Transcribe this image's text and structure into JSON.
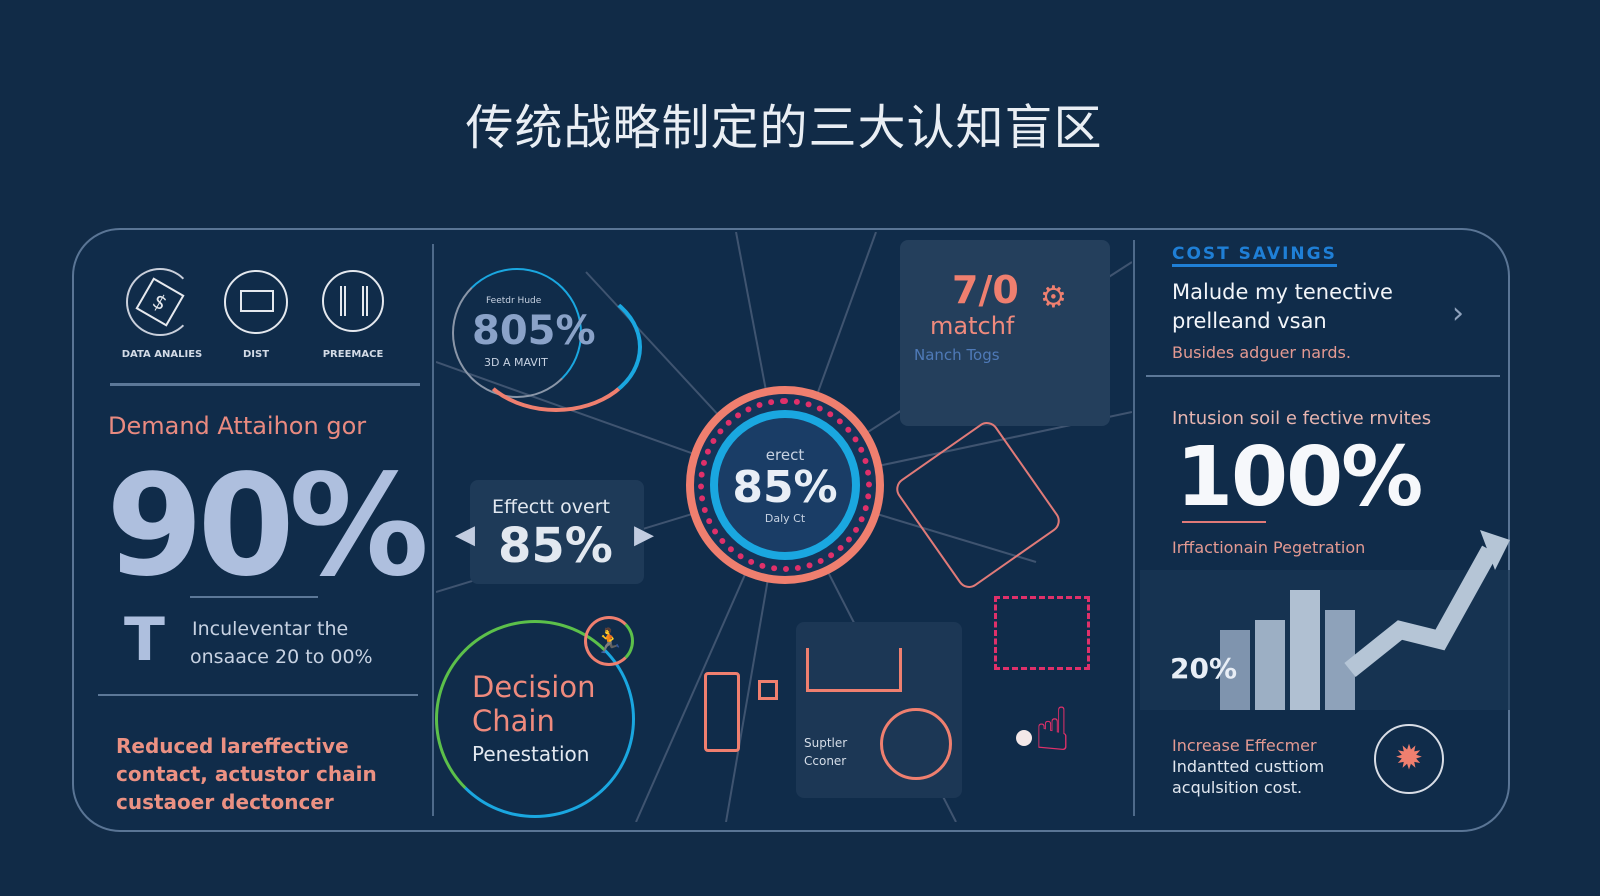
{
  "title": "传统战略制定的三大认知盲区",
  "left": {
    "icons": [
      {
        "icon": "dollar-cycle-icon",
        "label": "DATA ANALIES"
      },
      {
        "icon": "presentation-board-icon",
        "label": "DIST"
      },
      {
        "icon": "bar-chart-icon",
        "label": "PREEMACE"
      }
    ],
    "heading": "Demand Attaihon gor",
    "big_value": "90%",
    "note_line1": "Inculeventar the",
    "note_line2": "onsaace 20 to 00%",
    "footer": "Reduced lareffective contact, actustor chain custaoer dectoncer"
  },
  "center": {
    "ring_small": {
      "label": "Feetdr Hude",
      "value": "805%",
      "sub": "3D A MAVIT"
    },
    "hub": {
      "label": "erect",
      "value": "85%",
      "sub": "Daly Ct"
    },
    "effect_card": {
      "label": "Effectt overt",
      "value": "85%"
    },
    "match_card": {
      "value": "7/0",
      "label": "matchf",
      "sub": "Nanch Togs"
    },
    "decision": {
      "line1": "Decision",
      "line2": "Chain",
      "line3": "Penestation"
    },
    "supplier": {
      "line1": "Suptler",
      "line2": "Cconer"
    },
    "colors": {
      "coral": "#ef7f6f",
      "cyan": "#1aa7e0",
      "magenta": "#e0306a",
      "green": "#5cc04a"
    }
  },
  "right": {
    "section_label": "COST SAVINGS",
    "heading_line1": "Malude my tenective",
    "heading_line2": "prelleand vsan",
    "sub": "Busides adguer nards.",
    "metric_label": "Intusion soil e fective rnvites",
    "big_value": "100%",
    "metric_sub": "Irffactionain Pegetration",
    "chart_value": "20%",
    "footer_line1": "Increase Effecmer",
    "footer_line2": "Indantted custtiom",
    "footer_line3": "acqulsition cost."
  }
}
